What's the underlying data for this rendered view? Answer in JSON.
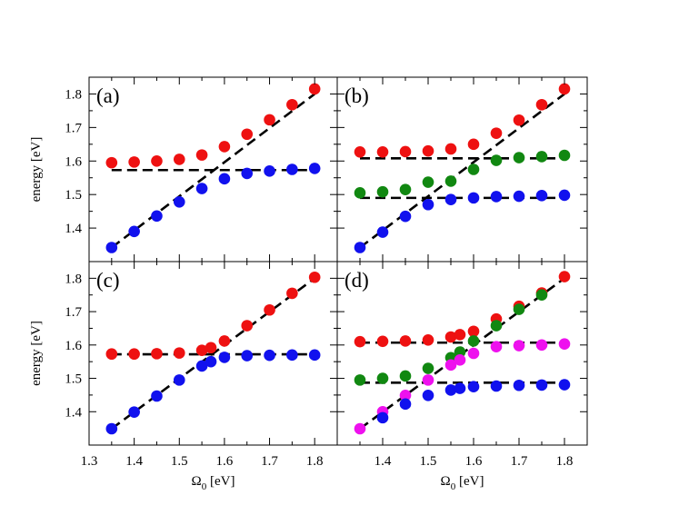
{
  "chart_data": [
    {
      "type": "scatter",
      "panel_label": "(a)",
      "xlim": [
        1.3,
        1.85
      ],
      "ylim": [
        1.3,
        1.85
      ],
      "ylabel": "energy [eV]",
      "xlabel": "",
      "series": [
        {
          "name": "red",
          "color": "#ee1111",
          "x": [
            1.35,
            1.4,
            1.45,
            1.5,
            1.55,
            1.6,
            1.65,
            1.7,
            1.75,
            1.8
          ],
          "y": [
            1.595,
            1.597,
            1.6,
            1.605,
            1.618,
            1.643,
            1.68,
            1.723,
            1.768,
            1.815
          ]
        },
        {
          "name": "blue",
          "color": "#1111ee",
          "x": [
            1.35,
            1.4,
            1.45,
            1.5,
            1.55,
            1.6,
            1.65,
            1.7,
            1.75,
            1.8
          ],
          "y": [
            1.342,
            1.39,
            1.436,
            1.478,
            1.518,
            1.547,
            1.563,
            1.57,
            1.575,
            1.578
          ]
        }
      ],
      "dashed_lines": [
        {
          "x": [
            1.35,
            1.8
          ],
          "y": [
            1.342,
            1.8
          ]
        },
        {
          "x": [
            1.35,
            1.8
          ],
          "y": [
            1.573,
            1.573
          ]
        }
      ]
    },
    {
      "type": "scatter",
      "panel_label": "(b)",
      "xlim": [
        1.3,
        1.85
      ],
      "ylim": [
        1.3,
        1.85
      ],
      "ylabel": "",
      "xlabel": "",
      "series": [
        {
          "name": "red",
          "color": "#ee1111",
          "x": [
            1.35,
            1.4,
            1.45,
            1.5,
            1.55,
            1.6,
            1.65,
            1.7,
            1.75,
            1.8
          ],
          "y": [
            1.627,
            1.627,
            1.628,
            1.63,
            1.636,
            1.65,
            1.683,
            1.722,
            1.768,
            1.815
          ]
        },
        {
          "name": "green",
          "color": "#118811",
          "x": [
            1.35,
            1.4,
            1.45,
            1.5,
            1.55,
            1.6,
            1.65,
            1.7,
            1.75,
            1.8
          ],
          "y": [
            1.505,
            1.508,
            1.515,
            1.537,
            1.54,
            1.575,
            1.602,
            1.61,
            1.613,
            1.617
          ]
        },
        {
          "name": "blue",
          "color": "#1111ee",
          "x": [
            1.35,
            1.4,
            1.45,
            1.5,
            1.55,
            1.6,
            1.65,
            1.7,
            1.75,
            1.8
          ],
          "y": [
            1.342,
            1.388,
            1.435,
            1.47,
            1.485,
            1.49,
            1.494,
            1.495,
            1.497,
            1.498
          ]
        }
      ],
      "dashed_lines": [
        {
          "x": [
            1.35,
            1.8
          ],
          "y": [
            1.342,
            1.8
          ]
        },
        {
          "x": [
            1.35,
            1.8
          ],
          "y": [
            1.608,
            1.608
          ]
        },
        {
          "x": [
            1.35,
            1.8
          ],
          "y": [
            1.49,
            1.49
          ]
        }
      ]
    },
    {
      "type": "scatter",
      "panel_label": "(c)",
      "xlim": [
        1.3,
        1.85
      ],
      "ylim": [
        1.3,
        1.85
      ],
      "ylabel": "energy [eV]",
      "xlabel": "Ω0 [eV]",
      "series": [
        {
          "name": "red",
          "color": "#ee1111",
          "x": [
            1.35,
            1.4,
            1.45,
            1.5,
            1.55,
            1.57,
            1.6,
            1.65,
            1.7,
            1.75,
            1.8
          ],
          "y": [
            1.573,
            1.573,
            1.574,
            1.576,
            1.584,
            1.592,
            1.612,
            1.658,
            1.705,
            1.755,
            1.803
          ]
        },
        {
          "name": "blue",
          "color": "#1111ee",
          "x": [
            1.35,
            1.4,
            1.45,
            1.5,
            1.55,
            1.57,
            1.6,
            1.65,
            1.7,
            1.75,
            1.8
          ],
          "y": [
            1.349,
            1.399,
            1.447,
            1.495,
            1.537,
            1.55,
            1.563,
            1.568,
            1.569,
            1.57,
            1.57
          ]
        }
      ],
      "dashed_lines": [
        {
          "x": [
            1.35,
            1.8
          ],
          "y": [
            1.349,
            1.8
          ]
        },
        {
          "x": [
            1.35,
            1.8
          ],
          "y": [
            1.572,
            1.572
          ]
        }
      ]
    },
    {
      "type": "scatter",
      "panel_label": "(d)",
      "xlim": [
        1.3,
        1.85
      ],
      "ylim": [
        1.3,
        1.85
      ],
      "ylabel": "",
      "xlabel": "Ω0 [eV]",
      "series": [
        {
          "name": "red",
          "color": "#ee1111",
          "x": [
            1.35,
            1.4,
            1.45,
            1.5,
            1.55,
            1.57,
            1.6,
            1.65,
            1.7,
            1.75,
            1.8
          ],
          "y": [
            1.61,
            1.611,
            1.612,
            1.615,
            1.624,
            1.631,
            1.641,
            1.678,
            1.716,
            1.756,
            1.805
          ]
        },
        {
          "name": "green",
          "color": "#118811",
          "x": [
            1.35,
            1.4,
            1.45,
            1.5,
            1.55,
            1.57,
            1.6,
            1.65,
            1.7,
            1.75
          ],
          "y": [
            1.495,
            1.5,
            1.507,
            1.53,
            1.562,
            1.579,
            1.612,
            1.658,
            1.707,
            1.75
          ]
        },
        {
          "name": "magenta",
          "color": "#ee11ee",
          "x": [
            1.35,
            1.4,
            1.45,
            1.5,
            1.55,
            1.57,
            1.6,
            1.65,
            1.7,
            1.75,
            1.8
          ],
          "y": [
            1.349,
            1.4,
            1.449,
            1.495,
            1.54,
            1.555,
            1.575,
            1.595,
            1.598,
            1.6,
            1.603
          ]
        },
        {
          "name": "blue",
          "color": "#1111ee",
          "x": [
            1.4,
            1.45,
            1.5,
            1.55,
            1.57,
            1.6,
            1.65,
            1.7,
            1.75,
            1.8
          ],
          "y": [
            1.382,
            1.423,
            1.449,
            1.465,
            1.47,
            1.475,
            1.477,
            1.479,
            1.48,
            1.481
          ]
        }
      ],
      "dashed_lines": [
        {
          "x": [
            1.35,
            1.8
          ],
          "y": [
            1.349,
            1.8
          ]
        },
        {
          "x": [
            1.35,
            1.8
          ],
          "y": [
            1.607,
            1.607
          ]
        },
        {
          "x": [
            1.35,
            1.8
          ],
          "y": [
            1.487,
            1.487
          ]
        }
      ]
    }
  ],
  "axes": {
    "y_ticks": [
      "1.4",
      "1.5",
      "1.6",
      "1.7",
      "1.8"
    ],
    "x_ticks_left": [
      "1.3",
      "1.4",
      "1.5",
      "1.6",
      "1.7",
      "1.8"
    ],
    "x_ticks_right": [
      "1.4",
      "1.5",
      "1.6",
      "1.7",
      "1.8"
    ],
    "ylabel": "energy [eV]",
    "xlabel_main": "Ω",
    "xlabel_sub": "0",
    "xlabel_unit": " [eV]"
  }
}
